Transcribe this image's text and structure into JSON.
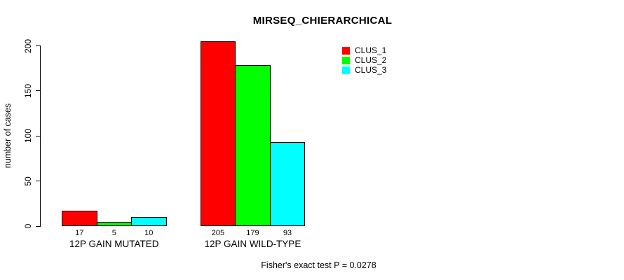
{
  "title": "MIRSEQ_CHIERARCHICAL",
  "y_axis": {
    "label": "number of cases",
    "ticks": [
      "0",
      "50",
      "100",
      "150",
      "200"
    ]
  },
  "footer": "Fisher's exact test P = 0.0278",
  "chart_data": {
    "type": "bar",
    "title": "MIRSEQ_CHIERARCHICAL",
    "categories": [
      "12P GAIN MUTATED",
      "12P GAIN WILD-TYPE"
    ],
    "series": [
      {
        "name": "CLUS_1",
        "color": "#ff0000",
        "values": [
          17,
          205
        ]
      },
      {
        "name": "CLUS_2",
        "color": "#00ff00",
        "values": [
          5,
          179
        ]
      },
      {
        "name": "CLUS_3",
        "color": "#00ffff",
        "values": [
          10,
          93
        ]
      }
    ],
    "xlabel": "",
    "ylabel": "number of cases",
    "ylim": [
      0,
      200
    ],
    "grid": false,
    "bar_value_labels": true,
    "legend_position": "top-right",
    "annotation": "Fisher's exact test P = 0.0278"
  }
}
